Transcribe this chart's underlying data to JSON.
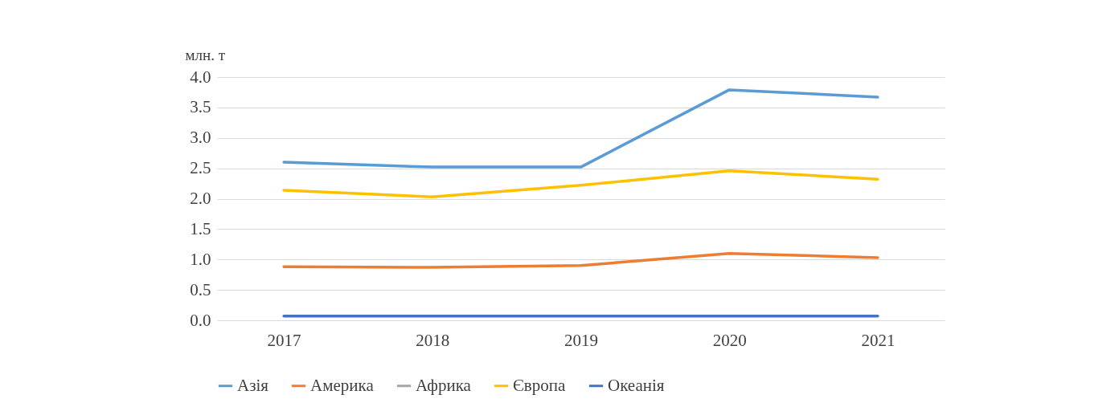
{
  "chart_data": {
    "type": "line",
    "ylabel": "млн. т",
    "categories": [
      "2017",
      "2018",
      "2019",
      "2020",
      "2021"
    ],
    "ylim": [
      0,
      4
    ],
    "yticks": [
      {
        "value": 0,
        "label": "0.0"
      },
      {
        "value": 0.5,
        "label": "0.5"
      },
      {
        "value": 1,
        "label": "1.0"
      },
      {
        "value": 1.5,
        "label": "1.5"
      },
      {
        "value": 2,
        "label": "2.0"
      },
      {
        "value": 2.5,
        "label": "2.5"
      },
      {
        "value": 3,
        "label": "3.0"
      },
      {
        "value": 3.5,
        "label": "3.5"
      },
      {
        "value": 4,
        "label": "4.0"
      }
    ],
    "grid": "y",
    "legend": "bottom",
    "series": [
      {
        "name": "Азія",
        "color": "#5b9bd5",
        "values": [
          2.6,
          2.52,
          2.52,
          3.79,
          3.67
        ]
      },
      {
        "name": "Америка",
        "color": "#ed7d31",
        "values": [
          0.88,
          0.87,
          0.9,
          1.1,
          1.03
        ]
      },
      {
        "name": "Африка",
        "color": "#a5a5a5",
        "values": [
          null,
          null,
          null,
          null,
          null
        ]
      },
      {
        "name": "Європа",
        "color": "#ffc000",
        "values": [
          2.14,
          2.03,
          2.22,
          2.46,
          2.32
        ]
      },
      {
        "name": "Океанія",
        "color": "#4472c4",
        "values": [
          0.07,
          0.07,
          0.07,
          0.07,
          0.07
        ]
      }
    ]
  }
}
